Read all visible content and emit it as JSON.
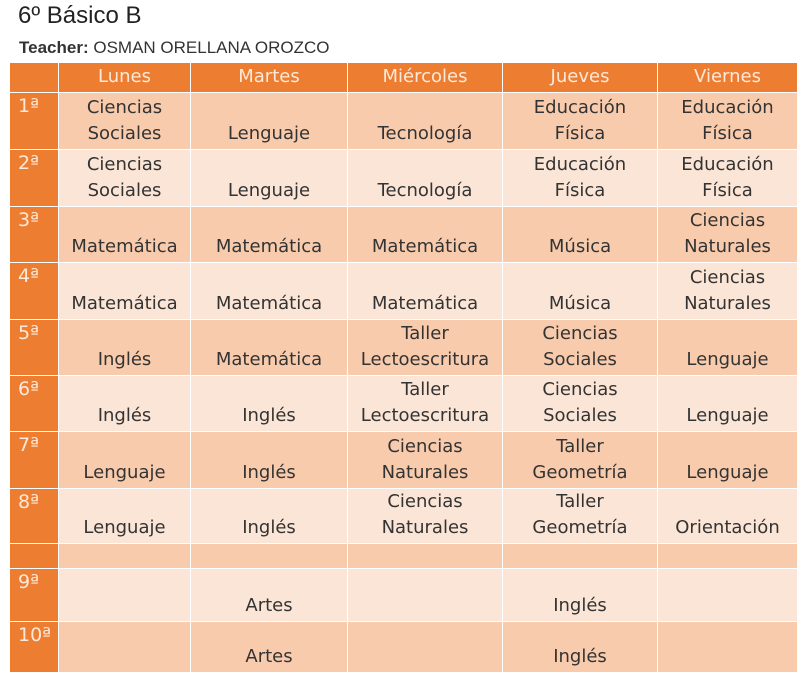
{
  "header": {
    "title": "6º Básico B",
    "teacher_label": "Teacher:",
    "teacher_name": "OSMAN ORELLANA OROZCO"
  },
  "table": {
    "columns": [
      "Lunes",
      "Martes",
      "Miércoles",
      "Jueves",
      "Viernes"
    ],
    "rows": [
      {
        "period": "1ª",
        "cells": [
          "Ciencias\nSociales",
          "Lenguaje",
          "Tecnología",
          "Educación\nFísica",
          "Educación\nFísica"
        ]
      },
      {
        "period": "2ª",
        "cells": [
          "Ciencias\nSociales",
          "Lenguaje",
          "Tecnología",
          "Educación\nFísica",
          "Educación\nFísica"
        ]
      },
      {
        "period": "3ª",
        "cells": [
          "Matemática",
          "Matemática",
          "Matemática",
          "Música",
          "Ciencias\nNaturales"
        ]
      },
      {
        "period": "4ª",
        "cells": [
          "Matemática",
          "Matemática",
          "Matemática",
          "Música",
          "Ciencias\nNaturales"
        ]
      },
      {
        "period": "5ª",
        "cells": [
          "Inglés",
          "Matemática",
          "Taller\nLectoescritura",
          "Ciencias\nSociales",
          "Lenguaje"
        ]
      },
      {
        "period": "6ª",
        "cells": [
          "Inglés",
          "Inglés",
          "Taller\nLectoescritura",
          "Ciencias\nSociales",
          "Lenguaje"
        ]
      },
      {
        "period": "7ª",
        "cells": [
          "Lenguaje",
          "Inglés",
          "Ciencias\nNaturales",
          "Taller\nGeometría",
          "Lenguaje"
        ]
      },
      {
        "period": "8ª",
        "cells": [
          "Lenguaje",
          "Inglés",
          "Ciencias\nNaturales",
          "Taller\nGeometría",
          "Orientación"
        ]
      },
      {
        "period": null,
        "cells": [
          null,
          null,
          null,
          null,
          null
        ]
      },
      {
        "period": "9ª",
        "cells": [
          null,
          "Artes",
          null,
          "Inglés",
          null
        ]
      },
      {
        "period": "10ª",
        "cells": [
          null,
          "Artes",
          null,
          "Inglés",
          null
        ]
      }
    ]
  }
}
